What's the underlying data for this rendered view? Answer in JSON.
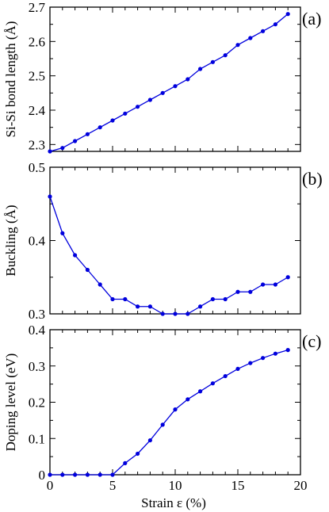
{
  "figure": {
    "xlabel": "Strain ε (%)"
  },
  "chart_data": [
    {
      "type": "line",
      "panel_label": "(a)",
      "ylabel": "Si-Si bond length (Å)",
      "xlim": [
        0,
        20
      ],
      "ylim": [
        2.28,
        2.7
      ],
      "yticks": [
        "2.3",
        "2.4",
        "2.5",
        "2.6",
        "2.7"
      ],
      "ytick_values": [
        2.3,
        2.4,
        2.5,
        2.6,
        2.7
      ],
      "color": "#0000dd",
      "x": [
        0,
        1,
        2,
        3,
        4,
        5,
        6,
        7,
        8,
        9,
        10,
        11,
        12,
        13,
        14,
        15,
        16,
        17,
        18,
        19
      ],
      "y": [
        2.28,
        2.29,
        2.31,
        2.33,
        2.35,
        2.37,
        2.39,
        2.41,
        2.43,
        2.45,
        2.47,
        2.49,
        2.52,
        2.54,
        2.56,
        2.59,
        2.61,
        2.63,
        2.65,
        2.68
      ]
    },
    {
      "type": "line",
      "panel_label": "(b)",
      "ylabel": "Buckling (Å)",
      "xlim": [
        0,
        20
      ],
      "ylim": [
        0.3,
        0.5
      ],
      "yticks": [
        "0.3",
        "0.4",
        "0.5"
      ],
      "ytick_values": [
        0.3,
        0.4,
        0.5
      ],
      "color": "#0000dd",
      "x": [
        0,
        1,
        2,
        3,
        4,
        5,
        6,
        7,
        8,
        9,
        10,
        11,
        12,
        13,
        14,
        15,
        16,
        17,
        18,
        19
      ],
      "y": [
        0.46,
        0.41,
        0.38,
        0.36,
        0.34,
        0.32,
        0.32,
        0.31,
        0.31,
        0.3,
        0.3,
        0.3,
        0.31,
        0.32,
        0.32,
        0.33,
        0.33,
        0.34,
        0.34,
        0.35
      ]
    },
    {
      "type": "line",
      "panel_label": "(c)",
      "ylabel": "Doping level (eV)",
      "xlim": [
        0,
        20
      ],
      "ylim": [
        0,
        0.4
      ],
      "yticks": [
        "0",
        "0.1",
        "0.2",
        "0.3",
        "0.4"
      ],
      "ytick_values": [
        0,
        0.1,
        0.2,
        0.3,
        0.4
      ],
      "xticks": [
        "0",
        "5",
        "10",
        "15",
        "20"
      ],
      "xtick_values": [
        0,
        5,
        10,
        15,
        20
      ],
      "color": "#0000dd",
      "x": [
        0,
        1,
        2,
        3,
        4,
        5,
        6,
        7,
        8,
        9,
        10,
        11,
        12,
        13,
        14,
        15,
        16,
        17,
        18,
        19
      ],
      "y": [
        0,
        0,
        0,
        0,
        0,
        0,
        0.032,
        0.058,
        0.095,
        0.138,
        0.18,
        0.208,
        0.23,
        0.252,
        0.272,
        0.292,
        0.308,
        0.322,
        0.334,
        0.344
      ]
    }
  ]
}
